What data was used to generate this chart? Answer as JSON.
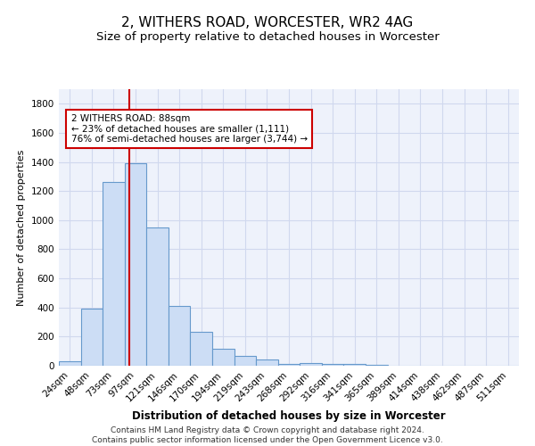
{
  "title1": "2, WITHERS ROAD, WORCESTER, WR2 4AG",
  "title2": "Size of property relative to detached houses in Worcester",
  "xlabel": "Distribution of detached houses by size in Worcester",
  "ylabel": "Number of detached properties",
  "categories": [
    "24sqm",
    "48sqm",
    "73sqm",
    "97sqm",
    "121sqm",
    "146sqm",
    "170sqm",
    "194sqm",
    "219sqm",
    "243sqm",
    "268sqm",
    "292sqm",
    "316sqm",
    "341sqm",
    "365sqm",
    "389sqm",
    "414sqm",
    "438sqm",
    "462sqm",
    "487sqm",
    "511sqm"
  ],
  "values": [
    30,
    390,
    1260,
    1390,
    950,
    410,
    235,
    115,
    70,
    45,
    15,
    20,
    15,
    10,
    5,
    0,
    0,
    0,
    0,
    0,
    0
  ],
  "bar_color": "#ccddf5",
  "bar_edge_color": "#6699cc",
  "bar_linewidth": 0.8,
  "vline_x": 2.7,
  "vline_color": "#cc0000",
  "annotation_text": "2 WITHERS ROAD: 88sqm\n← 23% of detached houses are smaller (1,111)\n76% of semi-detached houses are larger (3,744) →",
  "annotation_box_color": "#ffffff",
  "annotation_box_edge_color": "#cc0000",
  "ylim": [
    0,
    1900
  ],
  "yticks": [
    0,
    200,
    400,
    600,
    800,
    1000,
    1200,
    1400,
    1600,
    1800
  ],
  "footer1": "Contains HM Land Registry data © Crown copyright and database right 2024.",
  "footer2": "Contains public sector information licensed under the Open Government Licence v3.0.",
  "bg_color": "#eef2fb",
  "title1_fontsize": 11,
  "title2_fontsize": 9.5,
  "xlabel_fontsize": 8.5,
  "ylabel_fontsize": 8,
  "tick_fontsize": 7.5,
  "footer_fontsize": 6.5,
  "grid_color": "#d0d8ee"
}
